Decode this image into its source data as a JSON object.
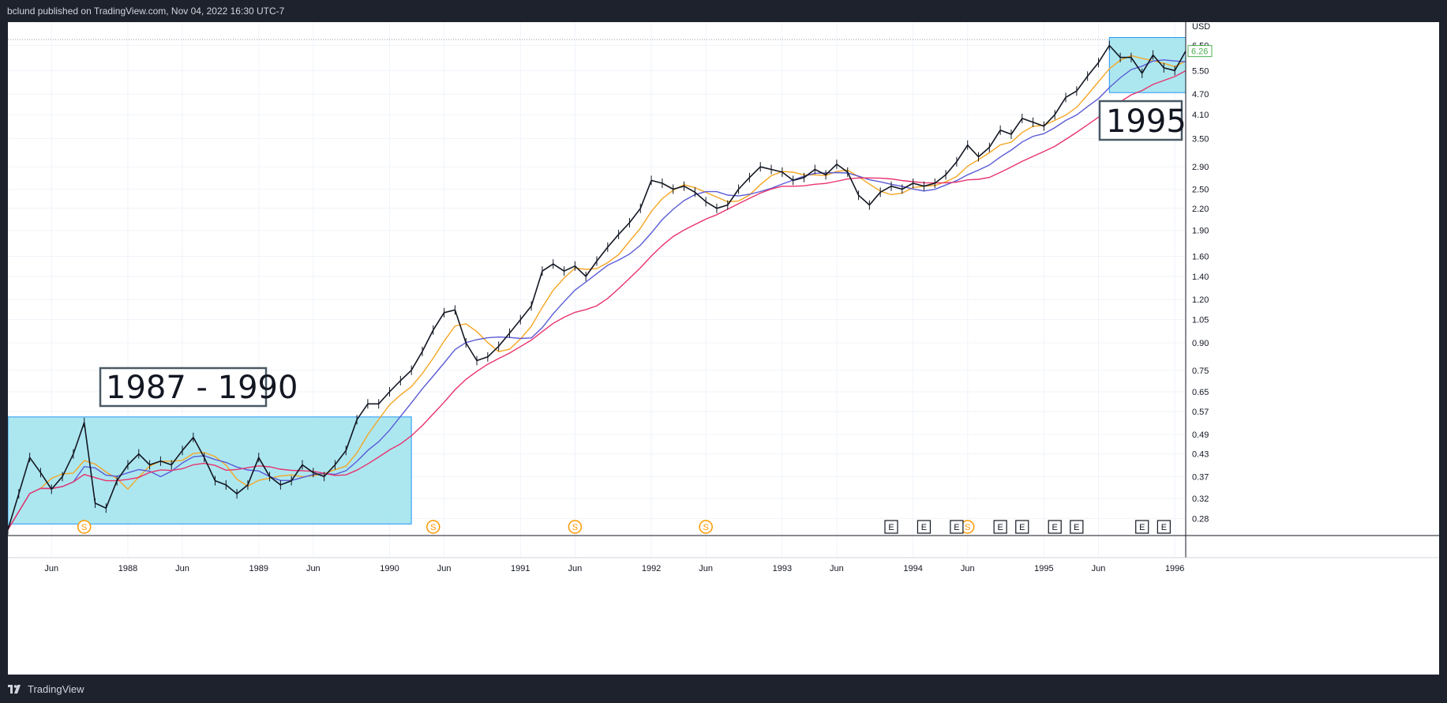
{
  "header": {
    "publisher_line": "bclund published on TradingView.com, Nov 04, 2022 16:30 UTC-7"
  },
  "footer": {
    "brand": "TradingView",
    "brand_icon": "tradingview-logo-icon"
  },
  "chart_data": {
    "type": "line",
    "title": "",
    "currency": "USD",
    "log_scale": true,
    "grid": true,
    "ylim": [
      0.25,
      7.2
    ],
    "xlim": [
      "1987-02",
      "1996-02"
    ],
    "last_price": "6.26",
    "y_ticks": [
      "0.28",
      "0.32",
      "0.37",
      "0.43",
      "0.49",
      "0.57",
      "0.65",
      "0.75",
      "0.90",
      "1.05",
      "1.20",
      "1.40",
      "1.60",
      "1.90",
      "2.20",
      "2.50",
      "2.90",
      "3.50",
      "4.10",
      "4.70",
      "5.50",
      "6.50"
    ],
    "x_ticks": [
      {
        "label": "Jun",
        "date": "1987-06"
      },
      {
        "label": "1988",
        "date": "1988-01"
      },
      {
        "label": "Jun",
        "date": "1988-06"
      },
      {
        "label": "1989",
        "date": "1989-01"
      },
      {
        "label": "Jun",
        "date": "1989-06"
      },
      {
        "label": "1990",
        "date": "1990-01"
      },
      {
        "label": "Jun",
        "date": "1990-06"
      },
      {
        "label": "1991",
        "date": "1991-01"
      },
      {
        "label": "Jun",
        "date": "1991-06"
      },
      {
        "label": "1992",
        "date": "1992-01"
      },
      {
        "label": "Jun",
        "date": "1992-06"
      },
      {
        "label": "1993",
        "date": "1993-01"
      },
      {
        "label": "Jun",
        "date": "1993-06"
      },
      {
        "label": "1994",
        "date": "1994-01"
      },
      {
        "label": "Jun",
        "date": "1994-06"
      },
      {
        "label": "1995",
        "date": "1995-01"
      },
      {
        "label": "Jun",
        "date": "1995-06"
      },
      {
        "label": "1996",
        "date": "1996-01"
      }
    ],
    "price_series": {
      "color": "#131722",
      "points": [
        [
          "1987-02",
          0.26
        ],
        [
          "1987-03",
          0.33
        ],
        [
          "1987-04",
          0.42
        ],
        [
          "1987-05",
          0.38
        ],
        [
          "1987-06",
          0.34
        ],
        [
          "1987-07",
          0.37
        ],
        [
          "1987-08",
          0.43
        ],
        [
          "1987-09",
          0.53
        ],
        [
          "1987-10",
          0.31
        ],
        [
          "1987-11",
          0.3
        ],
        [
          "1987-12",
          0.36
        ],
        [
          "1988-01",
          0.4
        ],
        [
          "1988-02",
          0.43
        ],
        [
          "1988-03",
          0.4
        ],
        [
          "1988-04",
          0.41
        ],
        [
          "1988-05",
          0.4
        ],
        [
          "1988-06",
          0.44
        ],
        [
          "1988-07",
          0.48
        ],
        [
          "1988-08",
          0.42
        ],
        [
          "1988-09",
          0.36
        ],
        [
          "1988-10",
          0.35
        ],
        [
          "1988-11",
          0.33
        ],
        [
          "1988-12",
          0.35
        ],
        [
          "1989-01",
          0.42
        ],
        [
          "1989-02",
          0.37
        ],
        [
          "1989-03",
          0.35
        ],
        [
          "1989-04",
          0.36
        ],
        [
          "1989-05",
          0.4
        ],
        [
          "1989-06",
          0.38
        ],
        [
          "1989-07",
          0.37
        ],
        [
          "1989-08",
          0.4
        ],
        [
          "1989-09",
          0.44
        ],
        [
          "1989-10",
          0.54
        ],
        [
          "1989-11",
          0.6
        ],
        [
          "1989-12",
          0.6
        ],
        [
          "1990-01",
          0.65
        ],
        [
          "1990-02",
          0.7
        ],
        [
          "1990-03",
          0.75
        ],
        [
          "1990-04",
          0.85
        ],
        [
          "1990-05",
          0.98
        ],
        [
          "1990-06",
          1.1
        ],
        [
          "1990-07",
          1.12
        ],
        [
          "1990-08",
          0.9
        ],
        [
          "1990-09",
          0.8
        ],
        [
          "1990-10",
          0.82
        ],
        [
          "1990-11",
          0.88
        ],
        [
          "1990-12",
          0.96
        ],
        [
          "1991-01",
          1.05
        ],
        [
          "1991-02",
          1.15
        ],
        [
          "1991-03",
          1.45
        ],
        [
          "1991-04",
          1.52
        ],
        [
          "1991-05",
          1.45
        ],
        [
          "1991-06",
          1.5
        ],
        [
          "1991-07",
          1.4
        ],
        [
          "1991-08",
          1.55
        ],
        [
          "1991-09",
          1.7
        ],
        [
          "1991-10",
          1.85
        ],
        [
          "1991-11",
          2.0
        ],
        [
          "1991-12",
          2.2
        ],
        [
          "1992-01",
          2.65
        ],
        [
          "1992-02",
          2.6
        ],
        [
          "1992-03",
          2.5
        ],
        [
          "1992-04",
          2.55
        ],
        [
          "1992-05",
          2.45
        ],
        [
          "1992-06",
          2.3
        ],
        [
          "1992-07",
          2.2
        ],
        [
          "1992-08",
          2.25
        ],
        [
          "1992-09",
          2.5
        ],
        [
          "1992-10",
          2.7
        ],
        [
          "1992-11",
          2.9
        ],
        [
          "1992-12",
          2.85
        ],
        [
          "1993-01",
          2.8
        ],
        [
          "1993-02",
          2.65
        ],
        [
          "1993-03",
          2.7
        ],
        [
          "1993-04",
          2.85
        ],
        [
          "1993-05",
          2.75
        ],
        [
          "1993-06",
          2.95
        ],
        [
          "1993-07",
          2.8
        ],
        [
          "1993-08",
          2.4
        ],
        [
          "1993-09",
          2.25
        ],
        [
          "1993-10",
          2.45
        ],
        [
          "1993-11",
          2.55
        ],
        [
          "1993-12",
          2.5
        ],
        [
          "1994-01",
          2.6
        ],
        [
          "1994-02",
          2.55
        ],
        [
          "1994-03",
          2.6
        ],
        [
          "1994-04",
          2.75
        ],
        [
          "1994-05",
          3.0
        ],
        [
          "1994-06",
          3.35
        ],
        [
          "1994-07",
          3.1
        ],
        [
          "1994-08",
          3.3
        ],
        [
          "1994-09",
          3.7
        ],
        [
          "1994-10",
          3.6
        ],
        [
          "1994-11",
          4.0
        ],
        [
          "1994-12",
          3.9
        ],
        [
          "1995-01",
          3.8
        ],
        [
          "1995-02",
          4.1
        ],
        [
          "1995-03",
          4.6
        ],
        [
          "1995-04",
          4.8
        ],
        [
          "1995-05",
          5.3
        ],
        [
          "1995-06",
          5.8
        ],
        [
          "1995-07",
          6.5
        ],
        [
          "1995-08",
          6.0
        ],
        [
          "1995-09",
          6.0
        ],
        [
          "1995-10",
          5.4
        ],
        [
          "1995-11",
          6.1
        ],
        [
          "1995-12",
          5.6
        ],
        [
          "1996-01",
          5.5
        ],
        [
          "1996-02",
          6.26
        ]
      ]
    },
    "moving_averages": [
      {
        "color": "#f5a623",
        "smoothing": 3
      },
      {
        "color": "#5b5bd6",
        "smoothing": 6
      },
      {
        "color": "#e8336d",
        "smoothing": 12
      }
    ],
    "annotations": [
      {
        "label": "1987 - 1990",
        "box": {
          "x0": "1987-02",
          "x1": "1990-03",
          "y0": 0.27,
          "y1": 0.55
        }
      },
      {
        "label": "1995",
        "box": {
          "x0": "1995-07",
          "x1": "1996-02",
          "y0": 4.75,
          "y1": 6.85
        }
      }
    ],
    "event_markers": [
      {
        "type": "dividend",
        "symbol": "S",
        "date": "1987-09"
      },
      {
        "type": "dividend",
        "symbol": "S",
        "date": "1990-05"
      },
      {
        "type": "dividend",
        "symbol": "S",
        "date": "1991-06"
      },
      {
        "type": "dividend",
        "symbol": "S",
        "date": "1992-06"
      },
      {
        "type": "dividend",
        "symbol": "S",
        "date": "1994-06"
      },
      {
        "type": "earnings",
        "symbol": "E",
        "date": "1993-11"
      },
      {
        "type": "earnings",
        "symbol": "E",
        "date": "1994-02"
      },
      {
        "type": "earnings",
        "symbol": "E",
        "date": "1994-05"
      },
      {
        "type": "earnings",
        "symbol": "E",
        "date": "1994-09"
      },
      {
        "type": "earnings",
        "symbol": "E",
        "date": "1994-11"
      },
      {
        "type": "earnings",
        "symbol": "E",
        "date": "1995-02"
      },
      {
        "type": "earnings",
        "symbol": "E",
        "date": "1995-04"
      },
      {
        "type": "earnings",
        "symbol": "E",
        "date": "1995-10"
      },
      {
        "type": "earnings",
        "symbol": "E",
        "date": "1995-12"
      }
    ],
    "colors": {
      "annotation_fill": "#9ee3ed",
      "annotation_border": "#2196f3",
      "price_tag": "#4caf50",
      "dividend_marker": "#ff9800",
      "grid": "#f0f3fa"
    }
  }
}
